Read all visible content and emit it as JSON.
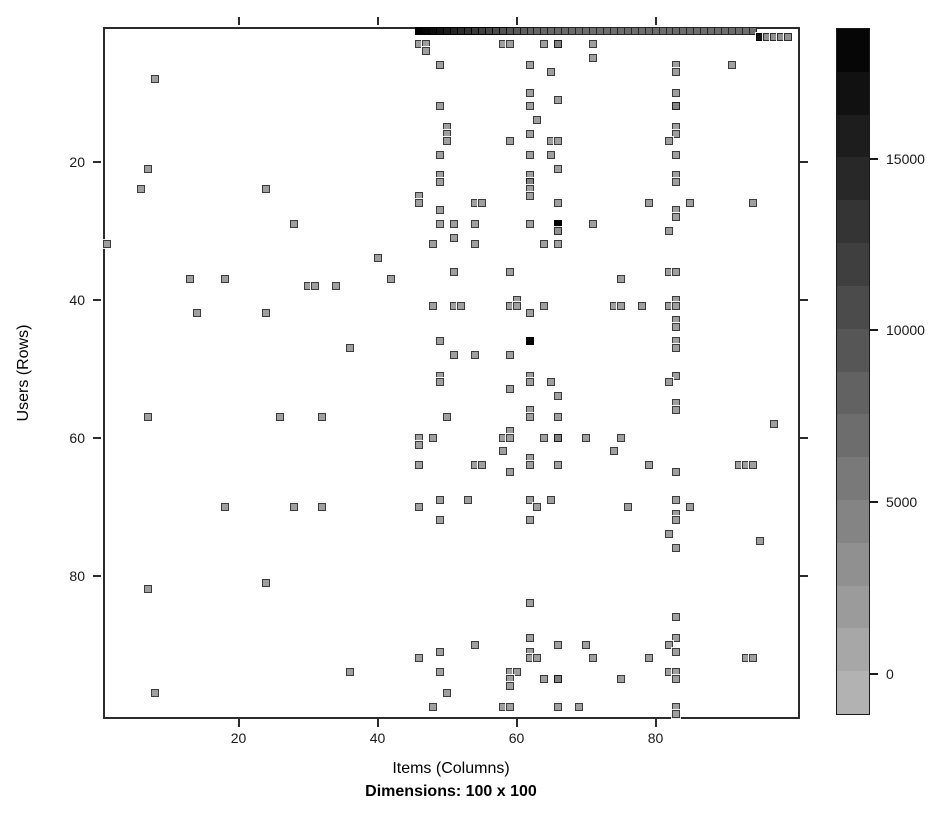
{
  "chart_data": {
    "type": "heatmap",
    "title": "Dimensions: 100 x 100",
    "xlabel": "Items (Columns)",
    "ylabel": "Users (Rows)",
    "x_ticks": [
      20,
      40,
      60,
      80
    ],
    "y_ticks": [
      20,
      40,
      60,
      80
    ],
    "xlim": [
      0.5,
      100.5
    ],
    "ylim": [
      0.5,
      100.5
    ],
    "y_inverted": true,
    "grid": false,
    "background": "#ffffff",
    "frame_color": "#2b2b2b",
    "legend": {
      "position": "right",
      "min": -1200,
      "max": 18800,
      "ticks": [
        0,
        5000,
        10000,
        15000
      ],
      "steps": 16,
      "low_color": "#b8b8b8",
      "high_color": "#000000"
    },
    "default_value": 1500,
    "row1_strip": {
      "row": 1,
      "start_col": 46,
      "values": [
        18700,
        18100,
        17400,
        16600,
        15800,
        15000,
        14200,
        13400,
        12600,
        11900,
        11200,
        10600,
        10000,
        9500,
        9000,
        8600,
        8200,
        7900,
        7700,
        7500,
        7400,
        7300,
        7200,
        7100,
        7000,
        7000,
        6900,
        7100,
        7000,
        6900,
        7200,
        7000,
        6900,
        7100,
        7000,
        7000,
        6900,
        7200,
        7000,
        7100,
        6900,
        7000,
        7100,
        6900,
        7000,
        7200,
        6900,
        7000,
        7100
      ]
    },
    "row2_block": [
      [
        95,
        2,
        16500
      ],
      [
        96,
        2,
        3000
      ],
      [
        97,
        2,
        3000
      ],
      [
        98,
        2,
        3000
      ],
      [
        99,
        2,
        3000
      ]
    ],
    "cells": [
      [
        8,
        8
      ],
      [
        46,
        3
      ],
      [
        47,
        3
      ],
      [
        47,
        4
      ],
      [
        58,
        3
      ],
      [
        59,
        3
      ],
      [
        64,
        3
      ],
      [
        66,
        3,
        5000
      ],
      [
        71,
        3
      ],
      [
        71,
        5
      ],
      [
        49,
        6
      ],
      [
        62,
        6
      ],
      [
        83,
        6
      ],
      [
        91,
        6
      ],
      [
        65,
        7
      ],
      [
        83,
        7
      ],
      [
        62,
        10
      ],
      [
        66,
        11
      ],
      [
        83,
        10
      ],
      [
        49,
        12
      ],
      [
        62,
        12
      ],
      [
        83,
        12,
        4500
      ],
      [
        63,
        14
      ],
      [
        50,
        15
      ],
      [
        83,
        15
      ],
      [
        50,
        16
      ],
      [
        62,
        16
      ],
      [
        83,
        16
      ],
      [
        50,
        17
      ],
      [
        59,
        17
      ],
      [
        65,
        17
      ],
      [
        66,
        17
      ],
      [
        82,
        17
      ],
      [
        49,
        19
      ],
      [
        62,
        19
      ],
      [
        65,
        19
      ],
      [
        83,
        19
      ],
      [
        7,
        21
      ],
      [
        66,
        21
      ],
      [
        49,
        22
      ],
      [
        62,
        22
      ],
      [
        83,
        22
      ],
      [
        49,
        23
      ],
      [
        62,
        23,
        4500
      ],
      [
        83,
        23
      ],
      [
        6,
        24
      ],
      [
        24,
        24
      ],
      [
        62,
        24
      ],
      [
        46,
        25
      ],
      [
        62,
        25
      ],
      [
        46,
        26
      ],
      [
        54,
        26
      ],
      [
        55,
        26
      ],
      [
        66,
        26
      ],
      [
        79,
        26
      ],
      [
        85,
        26
      ],
      [
        94,
        26
      ],
      [
        49,
        27
      ],
      [
        83,
        27
      ],
      [
        83,
        28
      ],
      [
        28,
        29
      ],
      [
        49,
        29
      ],
      [
        51,
        29
      ],
      [
        54,
        29
      ],
      [
        62,
        29
      ],
      [
        66,
        29,
        18600
      ],
      [
        71,
        29
      ],
      [
        66,
        30,
        3000
      ],
      [
        82,
        30
      ],
      [
        51,
        31
      ],
      [
        1,
        32
      ],
      [
        48,
        32
      ],
      [
        54,
        32
      ],
      [
        64,
        32
      ],
      [
        66,
        32
      ],
      [
        40,
        34
      ],
      [
        51,
        36
      ],
      [
        59,
        36
      ],
      [
        82,
        36
      ],
      [
        83,
        36
      ],
      [
        13,
        37
      ],
      [
        18,
        37
      ],
      [
        42,
        37
      ],
      [
        75,
        37
      ],
      [
        30,
        38
      ],
      [
        31,
        38
      ],
      [
        34,
        38
      ],
      [
        60,
        40
      ],
      [
        83,
        40
      ],
      [
        48,
        41
      ],
      [
        51,
        41
      ],
      [
        52,
        41
      ],
      [
        59,
        41
      ],
      [
        60,
        41
      ],
      [
        64,
        41
      ],
      [
        74,
        41
      ],
      [
        75,
        41
      ],
      [
        78,
        41
      ],
      [
        82,
        41
      ],
      [
        83,
        41
      ],
      [
        14,
        42
      ],
      [
        24,
        42
      ],
      [
        62,
        42
      ],
      [
        83,
        43
      ],
      [
        83,
        44
      ],
      [
        49,
        46
      ],
      [
        62,
        46,
        18300
      ],
      [
        83,
        46
      ],
      [
        36,
        47
      ],
      [
        83,
        47
      ],
      [
        51,
        48
      ],
      [
        54,
        48
      ],
      [
        59,
        48
      ],
      [
        49,
        51
      ],
      [
        62,
        51
      ],
      [
        83,
        51
      ],
      [
        49,
        52
      ],
      [
        62,
        52
      ],
      [
        65,
        52
      ],
      [
        82,
        52
      ],
      [
        59,
        53
      ],
      [
        66,
        54
      ],
      [
        83,
        55
      ],
      [
        83,
        56
      ],
      [
        7,
        57
      ],
      [
        26,
        57
      ],
      [
        32,
        57
      ],
      [
        50,
        57
      ],
      [
        62,
        56
      ],
      [
        62,
        57
      ],
      [
        66,
        57
      ],
      [
        97,
        58
      ],
      [
        59,
        59
      ],
      [
        46,
        60
      ],
      [
        48,
        60
      ],
      [
        58,
        60
      ],
      [
        59,
        60
      ],
      [
        64,
        60
      ],
      [
        66,
        60,
        5000
      ],
      [
        70,
        60
      ],
      [
        75,
        60
      ],
      [
        46,
        61
      ],
      [
        58,
        62
      ],
      [
        74,
        62
      ],
      [
        62,
        63
      ],
      [
        46,
        64
      ],
      [
        54,
        64
      ],
      [
        55,
        64
      ],
      [
        62,
        64
      ],
      [
        66,
        64
      ],
      [
        79,
        64
      ],
      [
        92,
        64
      ],
      [
        93,
        64
      ],
      [
        94,
        64
      ],
      [
        59,
        65
      ],
      [
        83,
        65
      ],
      [
        49,
        69
      ],
      [
        53,
        69
      ],
      [
        62,
        69
      ],
      [
        65,
        69
      ],
      [
        83,
        69
      ],
      [
        18,
        70
      ],
      [
        28,
        70
      ],
      [
        32,
        70
      ],
      [
        46,
        70
      ],
      [
        63,
        70
      ],
      [
        76,
        70
      ],
      [
        85,
        70
      ],
      [
        49,
        72
      ],
      [
        62,
        72
      ],
      [
        83,
        71
      ],
      [
        83,
        72
      ],
      [
        82,
        74
      ],
      [
        95,
        75
      ],
      [
        83,
        76
      ],
      [
        24,
        81
      ],
      [
        7,
        82
      ],
      [
        62,
        84
      ],
      [
        83,
        86
      ],
      [
        62,
        89
      ],
      [
        83,
        89
      ],
      [
        54,
        90
      ],
      [
        66,
        90
      ],
      [
        70,
        90
      ],
      [
        82,
        90
      ],
      [
        49,
        91
      ],
      [
        62,
        91
      ],
      [
        83,
        91
      ],
      [
        46,
        92
      ],
      [
        62,
        92
      ],
      [
        63,
        92
      ],
      [
        71,
        92
      ],
      [
        79,
        92
      ],
      [
        93,
        92
      ],
      [
        94,
        92
      ],
      [
        36,
        94
      ],
      [
        49,
        94
      ],
      [
        59,
        94
      ],
      [
        60,
        94
      ],
      [
        82,
        94
      ],
      [
        83,
        94
      ],
      [
        59,
        95
      ],
      [
        64,
        95
      ],
      [
        66,
        95,
        5000
      ],
      [
        75,
        95
      ],
      [
        83,
        95
      ],
      [
        59,
        96
      ],
      [
        8,
        97
      ],
      [
        50,
        97
      ],
      [
        48,
        99
      ],
      [
        58,
        99
      ],
      [
        59,
        99
      ],
      [
        66,
        99
      ],
      [
        69,
        99
      ],
      [
        83,
        99
      ],
      [
        83,
        100
      ]
    ]
  }
}
